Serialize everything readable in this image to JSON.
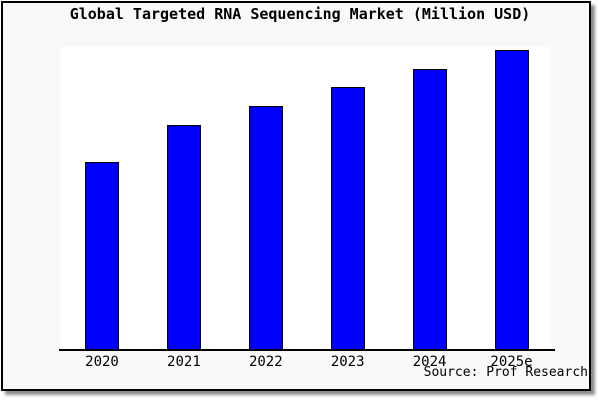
{
  "window": {
    "panel_background": "#f9f9f8",
    "plot_background": "#ffffff",
    "border_color": "#000000"
  },
  "header": {
    "title": "Global Targeted RNA Sequencing Market (Million USD)"
  },
  "footer": {
    "source_label": "Source: Prof Research"
  },
  "chart_data": {
    "type": "bar",
    "title": "Global Targeted RNA Sequencing Market (Million USD)",
    "categories": [
      "2020",
      "2021",
      "2022",
      "2023",
      "2024",
      "2025e"
    ],
    "values": [
      188,
      225,
      244,
      263,
      281,
      300
    ],
    "values_note": "relative bar heights in pixels; chart shows no y-axis scale, gridlines or data labels",
    "xlabel": "",
    "ylabel": "",
    "ylim_shown": false,
    "grid": false,
    "legend": false,
    "bar_color": "#0000fa",
    "bar_border_color": "#000000",
    "source": "Source: Prof Research"
  }
}
